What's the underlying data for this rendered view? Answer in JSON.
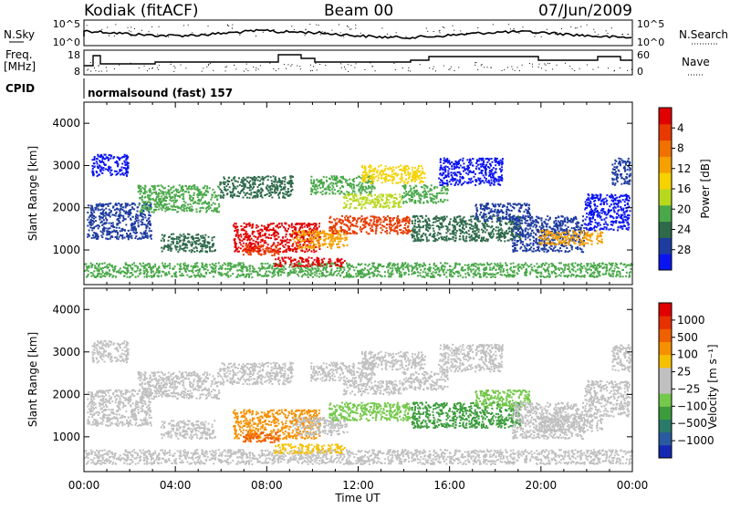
{
  "header": {
    "station": "Kodiak (fitACF)",
    "beam": "Beam 00",
    "date": "07/Jun/2009"
  },
  "noise_panel": {
    "left_label": "N.Sky",
    "right_label": "N.Search",
    "ticks_left": [
      "10^5",
      "10^0"
    ],
    "ticks_right": [
      "10^5",
      "10^0"
    ]
  },
  "freq_panel": {
    "left_label_1": "Freq.",
    "left_label_2": "[MHz]",
    "right_label": "Nave",
    "ticks_left": [
      "18",
      "8"
    ],
    "ticks_right": [
      "60",
      "0"
    ]
  },
  "cpid": {
    "label": "CPID",
    "text": "normalsound (fast) 157"
  },
  "chart_data": [
    {
      "type": "heatmap",
      "name": "Power",
      "ylabel": "Slant Range [km]",
      "xlabel": "Time UT",
      "x_ticks": [
        "00:00",
        "04:00",
        "08:00",
        "12:00",
        "16:00",
        "20:00",
        "00:00"
      ],
      "y_ticks": [
        "1000",
        "2000",
        "3000",
        "4000"
      ],
      "ylim": [
        180,
        4500
      ],
      "colorbar": {
        "label": "Power [dB]",
        "ticks": [
          "4",
          "8",
          "12",
          "16",
          "20",
          "24",
          "28"
        ],
        "colors": [
          "#0a14f0",
          "#1e3ca0",
          "#2e6a4a",
          "#4aa84a",
          "#b8d81e",
          "#f5d200",
          "#f5a000",
          "#f07000",
          "#e83a00",
          "#e00000"
        ]
      }
    },
    {
      "type": "heatmap",
      "name": "Velocity",
      "ylabel": "Slant Range [km]",
      "xlabel": "Time UT",
      "x_ticks": [
        "00:00",
        "04:00",
        "08:00",
        "12:00",
        "16:00",
        "20:00",
        "00:00"
      ],
      "y_ticks": [
        "1000",
        "2000",
        "3000",
        "4000"
      ],
      "ylim": [
        180,
        4500
      ],
      "colorbar": {
        "label": "Velocity [m s⁻¹]",
        "ticks": [
          "1000",
          "500",
          "100",
          "25",
          "−25",
          "−100",
          "−500",
          "−1000"
        ],
        "colors": [
          "#1428b4",
          "#2a5aa0",
          "#2a7a6a",
          "#3c9c3c",
          "#74c84a",
          "#c0c0c0",
          "#c0c0c0",
          "#f5c000",
          "#f59000",
          "#f06000",
          "#e83000",
          "#e00000"
        ]
      }
    }
  ],
  "x_axis_label": "Time UT"
}
